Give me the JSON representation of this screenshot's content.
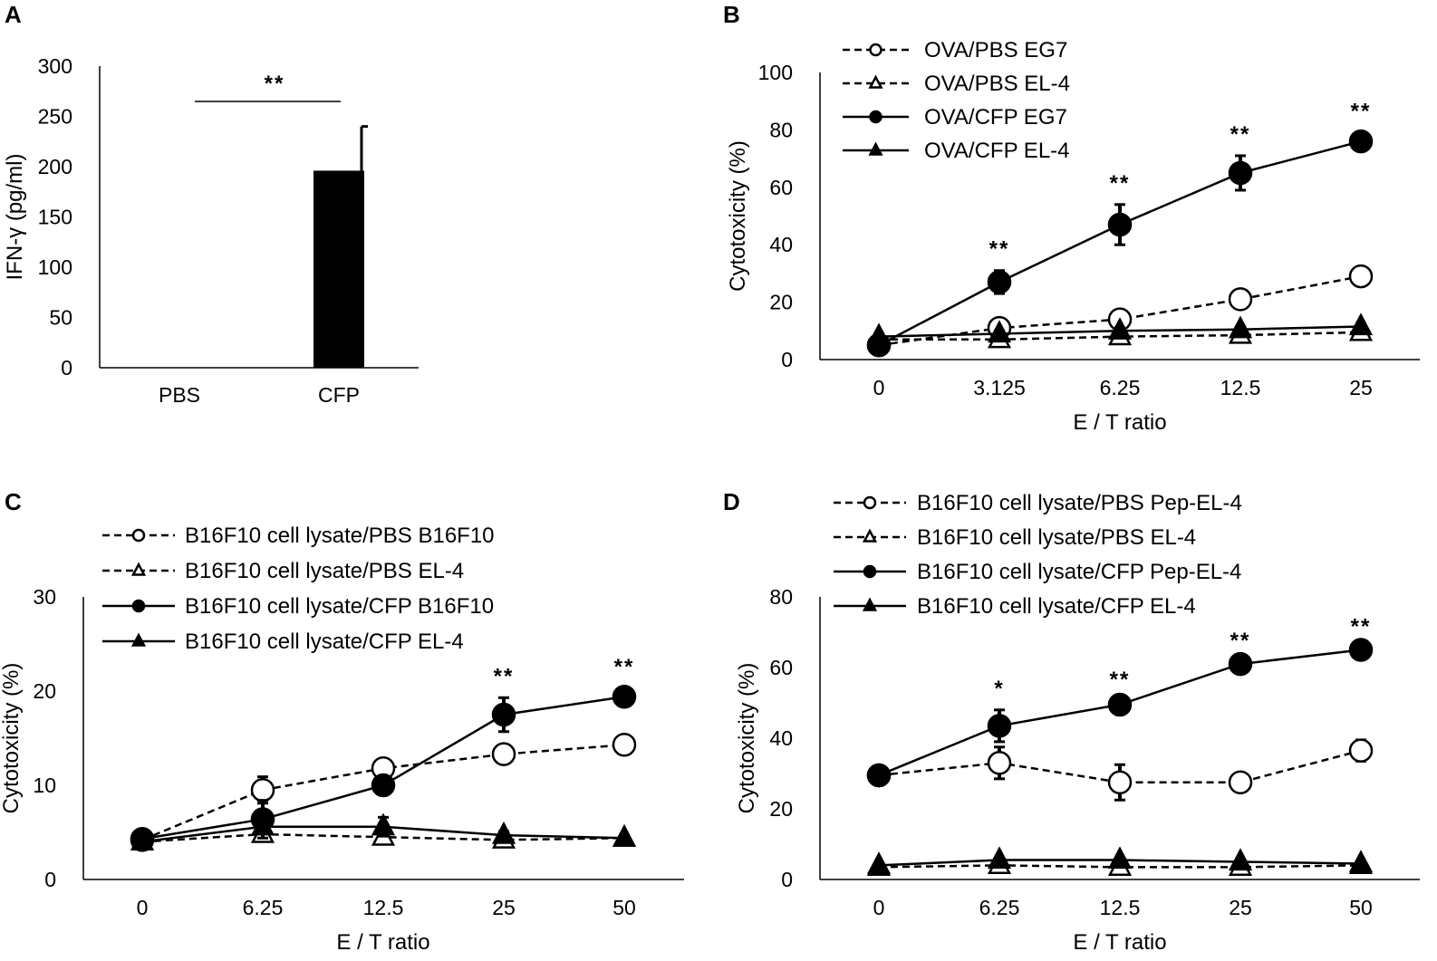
{
  "figure_colors": {
    "ink": "#000000",
    "background": "#ffffff"
  },
  "chart_data": [
    {
      "panel": "A",
      "type": "bar",
      "categories": [
        "PBS",
        "CFP"
      ],
      "values": [
        0,
        196
      ],
      "errors": [
        0,
        44
      ],
      "ylabel": "IFN-γ (pg/ml)",
      "xlabel": "",
      "ylim": [
        0,
        300
      ],
      "yticks": [
        "0",
        "50",
        "100",
        "150",
        "200",
        "250",
        "300"
      ],
      "significance": "**"
    },
    {
      "panel": "B",
      "type": "line",
      "categories": [
        "0",
        "3.125",
        "6.25",
        "12.5",
        "25"
      ],
      "xlabel": "E / T ratio",
      "ylabel": "Cytotoxicity (%)",
      "ylim": [
        0,
        100
      ],
      "yticks": [
        "0",
        "20",
        "40",
        "60",
        "80",
        "100"
      ],
      "series": [
        {
          "name": "OVA/PBS EG7",
          "marker": "circle-open",
          "dash": true,
          "values": [
            5,
            11,
            14,
            21,
            29
          ],
          "errors": [
            3,
            3,
            2,
            3,
            2
          ]
        },
        {
          "name": "OVA/PBS EL-4",
          "marker": "triangle-open",
          "dash": true,
          "values": [
            7,
            7,
            8,
            8.5,
            9.5
          ],
          "errors": [
            1.5,
            1.5,
            1,
            1,
            1
          ]
        },
        {
          "name": "OVA/CFP EG7",
          "marker": "circle-filled",
          "dash": false,
          "values": [
            5,
            27,
            47,
            65,
            76
          ],
          "errors": [
            3,
            4,
            7,
            6,
            3
          ]
        },
        {
          "name": "OVA/CFP EL-4",
          "marker": "triangle-filled",
          "dash": false,
          "values": [
            8,
            9,
            10,
            10.5,
            11.5
          ],
          "errors": [
            1,
            1,
            1,
            1,
            1
          ]
        }
      ],
      "significance": [
        "",
        "**",
        "**",
        "**",
        "**"
      ]
    },
    {
      "panel": "C",
      "type": "line",
      "categories": [
        "0",
        "6.25",
        "12.5",
        "25",
        "50"
      ],
      "xlabel": "E / T ratio",
      "ylabel": "Cytotoxicity (%)",
      "ylim": [
        0,
        30
      ],
      "yticks": [
        "0",
        "10",
        "20",
        "30"
      ],
      "series": [
        {
          "name": "B16F10 cell lysate/PBS B16F10",
          "marker": "circle-open",
          "dash": true,
          "values": [
            4.2,
            9.5,
            11.8,
            13.3,
            14.3
          ],
          "errors": [
            0.4,
            1.4,
            0.5,
            0.8,
            0.5
          ]
        },
        {
          "name": "B16F10 cell lysate/PBS EL-4",
          "marker": "triangle-open",
          "dash": true,
          "values": [
            4,
            4.8,
            4.5,
            4.2,
            4.4
          ],
          "errors": [
            0.3,
            0.4,
            0.4,
            0.3,
            0.3
          ]
        },
        {
          "name": "B16F10 cell lysate/CFP B16F10",
          "marker": "circle-filled",
          "dash": false,
          "values": [
            4.3,
            6.4,
            10,
            17.5,
            19.4
          ],
          "errors": [
            0.4,
            2,
            0.8,
            1.8,
            0.9
          ]
        },
        {
          "name": "B16F10 cell lysate/CFP EL-4",
          "marker": "triangle-filled",
          "dash": false,
          "values": [
            4,
            5.6,
            5.6,
            4.7,
            4.4
          ],
          "errors": [
            0.3,
            0.6,
            1,
            0.4,
            0.3
          ]
        }
      ],
      "significance": [
        "",
        "",
        "",
        "**",
        "**"
      ]
    },
    {
      "panel": "D",
      "type": "line",
      "categories": [
        "0",
        "6.25",
        "12.5",
        "25",
        "50"
      ],
      "xlabel": "E / T ratio",
      "ylabel": "Cytotoxicity (%)",
      "ylim": [
        0,
        80
      ],
      "yticks": [
        "0",
        "20",
        "40",
        "60",
        "80"
      ],
      "series": [
        {
          "name": "B16F10 cell lysate/PBS Pep-EL-4",
          "marker": "circle-open",
          "dash": true,
          "values": [
            29.5,
            33,
            27.5,
            27.5,
            36.5
          ],
          "errors": [
            0.5,
            4.5,
            5,
            1.5,
            3
          ]
        },
        {
          "name": "B16F10 cell lysate/PBS EL-4",
          "marker": "triangle-open",
          "dash": true,
          "values": [
            3.5,
            4,
            3.5,
            3.5,
            4
          ],
          "errors": [
            0.5,
            0.5,
            0.5,
            0.5,
            0.5
          ]
        },
        {
          "name": "B16F10 cell lysate/CFP Pep-EL-4",
          "marker": "circle-filled",
          "dash": false,
          "values": [
            29.5,
            43.5,
            49.5,
            61,
            65
          ],
          "errors": [
            0.5,
            4.5,
            1,
            0.5,
            0.5
          ]
        },
        {
          "name": "B16F10 cell lysate/CFP EL-4",
          "marker": "triangle-filled",
          "dash": false,
          "values": [
            4,
            5.5,
            5.5,
            5,
            4.5
          ],
          "errors": [
            0.5,
            0.5,
            0.5,
            0.5,
            0.5
          ]
        }
      ],
      "significance": [
        "",
        "*",
        "**",
        "**",
        "**"
      ]
    }
  ]
}
